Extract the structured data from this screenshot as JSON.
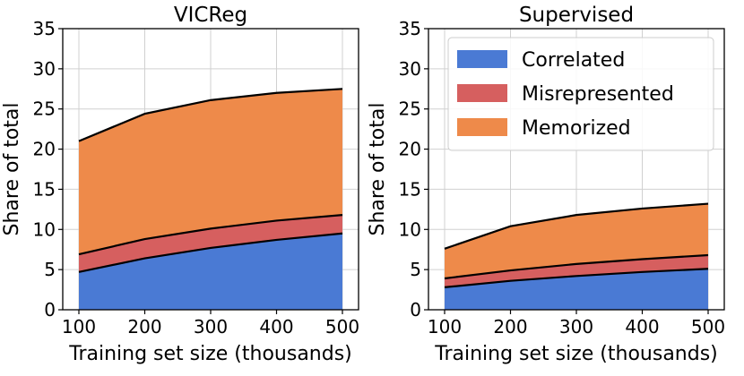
{
  "colors": {
    "correlated": "#4a7ad4",
    "misrepresented": "#d65f5f",
    "memorized": "#ee8a4a",
    "grid": "#d0d0d0",
    "edge": "#000000"
  },
  "chart_data": [
    {
      "type": "area",
      "title": "VICReg",
      "xlabel": "Training set size (thousands)",
      "ylabel": "Share of total",
      "x": [
        100,
        200,
        300,
        400,
        500
      ],
      "xticks": [
        "100",
        "200",
        "300",
        "400",
        "500"
      ],
      "yticks": [
        "0",
        "5",
        "10",
        "15",
        "20",
        "25",
        "30",
        "35"
      ],
      "xlim": [
        100,
        500
      ],
      "ylim": [
        0,
        35
      ],
      "stacked": true,
      "grid": true,
      "legend": null,
      "series": [
        {
          "name": "Correlated",
          "values": [
            4.7,
            6.4,
            7.7,
            8.7,
            9.5
          ]
        },
        {
          "name": "Misrepresented",
          "values": [
            2.2,
            2.4,
            2.4,
            2.4,
            2.3
          ]
        },
        {
          "name": "Memorized",
          "values": [
            14.1,
            15.6,
            16.0,
            15.9,
            15.7
          ]
        }
      ]
    },
    {
      "type": "area",
      "title": "Supervised",
      "xlabel": "Training set size (thousands)",
      "ylabel": "Share of total",
      "x": [
        100,
        200,
        300,
        400,
        500
      ],
      "xticks": [
        "100",
        "200",
        "300",
        "400",
        "500"
      ],
      "yticks": [
        "0",
        "5",
        "10",
        "15",
        "20",
        "25",
        "30",
        "35"
      ],
      "xlim": [
        100,
        500
      ],
      "ylim": [
        0,
        35
      ],
      "stacked": true,
      "grid": true,
      "legend": "top-right",
      "series": [
        {
          "name": "Correlated",
          "values": [
            2.8,
            3.6,
            4.2,
            4.7,
            5.1
          ]
        },
        {
          "name": "Misrepresented",
          "values": [
            1.1,
            1.3,
            1.5,
            1.6,
            1.7
          ]
        },
        {
          "name": "Memorized",
          "values": [
            3.7,
            5.5,
            6.1,
            6.3,
            6.4
          ]
        }
      ]
    }
  ]
}
